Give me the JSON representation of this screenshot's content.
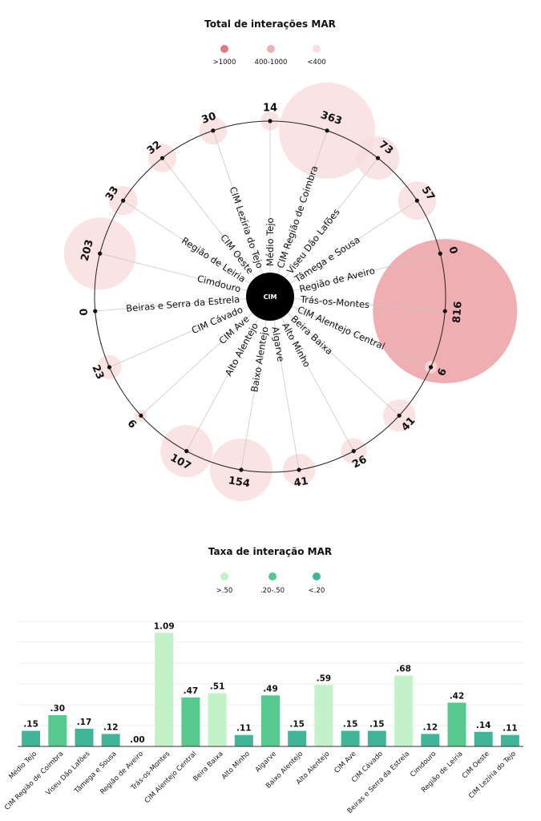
{
  "chart_data": [
    {
      "type": "radial-bubble",
      "title": "Total de interações MAR",
      "center_label": "CIM",
      "legend": [
        {
          "label": ">1000",
          "color": "#e07b82"
        },
        {
          "label": "400-1000",
          "color": "#f0b1b5"
        },
        {
          "label": "<400",
          "color": "#f9dede"
        }
      ],
      "categories": [
        "Médio Tejo",
        "CIM Região de Coimbra",
        "Viseu Dão Lafões",
        "Tâmega e Sousa",
        "Região de Aveiro",
        "Trás-os-Montes",
        "CIM Alentejo Central",
        "Beira Baixa",
        "Alto Minho",
        "Algarve",
        "Baixo Alentejo",
        "Alto Alentejo",
        "CIM Ave",
        "CIM Cávado",
        "Beiras e Serra da Estrela",
        "Cimdouro",
        "Região de Leiria",
        "CIM Oeste",
        "CIM Lezíria do Tejo"
      ],
      "values": [
        14,
        363,
        73,
        57,
        0,
        816,
        6,
        41,
        26,
        41,
        154,
        107,
        6,
        23,
        0,
        203,
        33,
        32,
        30
      ],
      "value_labels": [
        "14",
        "363",
        "73",
        "57",
        "0",
        "816",
        "6",
        "41",
        "26",
        "41",
        "154",
        "107",
        "6",
        "23",
        "0",
        "203",
        "33",
        "32",
        "30"
      ]
    },
    {
      "type": "bar",
      "title": "Taxa de interação MAR",
      "legend": [
        {
          "label": ">.50",
          "color": "#c4f2c8"
        },
        {
          "label": ".20-.50",
          "color": "#58c98e"
        },
        {
          "label": "<.20",
          "color": "#41b59a"
        }
      ],
      "categories": [
        "Médio Tejo",
        "CIM Região de Coimbra",
        "Viseu Dão Lafões",
        "Tâmega e Sousa",
        "Região de Aveiro",
        "Trás-os-Montes",
        "CIM Alentejo Central",
        "Beira Baixa",
        "Alto Minho",
        "Algarve",
        "Baixo Alentejo",
        "Alto Alentejo",
        "CIM Ave",
        "CIM Cávado",
        "Beiras e Serra da Estrela",
        "Cimdouro",
        "Região de Leiria",
        "CIM Oeste",
        "CIM Lezíria do Tejo"
      ],
      "values": [
        0.15,
        0.3,
        0.17,
        0.12,
        0.0,
        1.09,
        0.47,
        0.51,
        0.11,
        0.49,
        0.15,
        0.59,
        0.15,
        0.15,
        0.68,
        0.12,
        0.42,
        0.14,
        0.11
      ],
      "value_labels": [
        ".15",
        ".30",
        ".17",
        ".12",
        ".00",
        "1.09",
        ".47",
        ".51",
        ".11",
        ".49",
        ".15",
        ".59",
        ".15",
        ".15",
        ".68",
        ".12",
        ".42",
        ".14",
        ".11"
      ],
      "ylim": [
        0,
        1.2
      ],
      "grid": true
    }
  ]
}
